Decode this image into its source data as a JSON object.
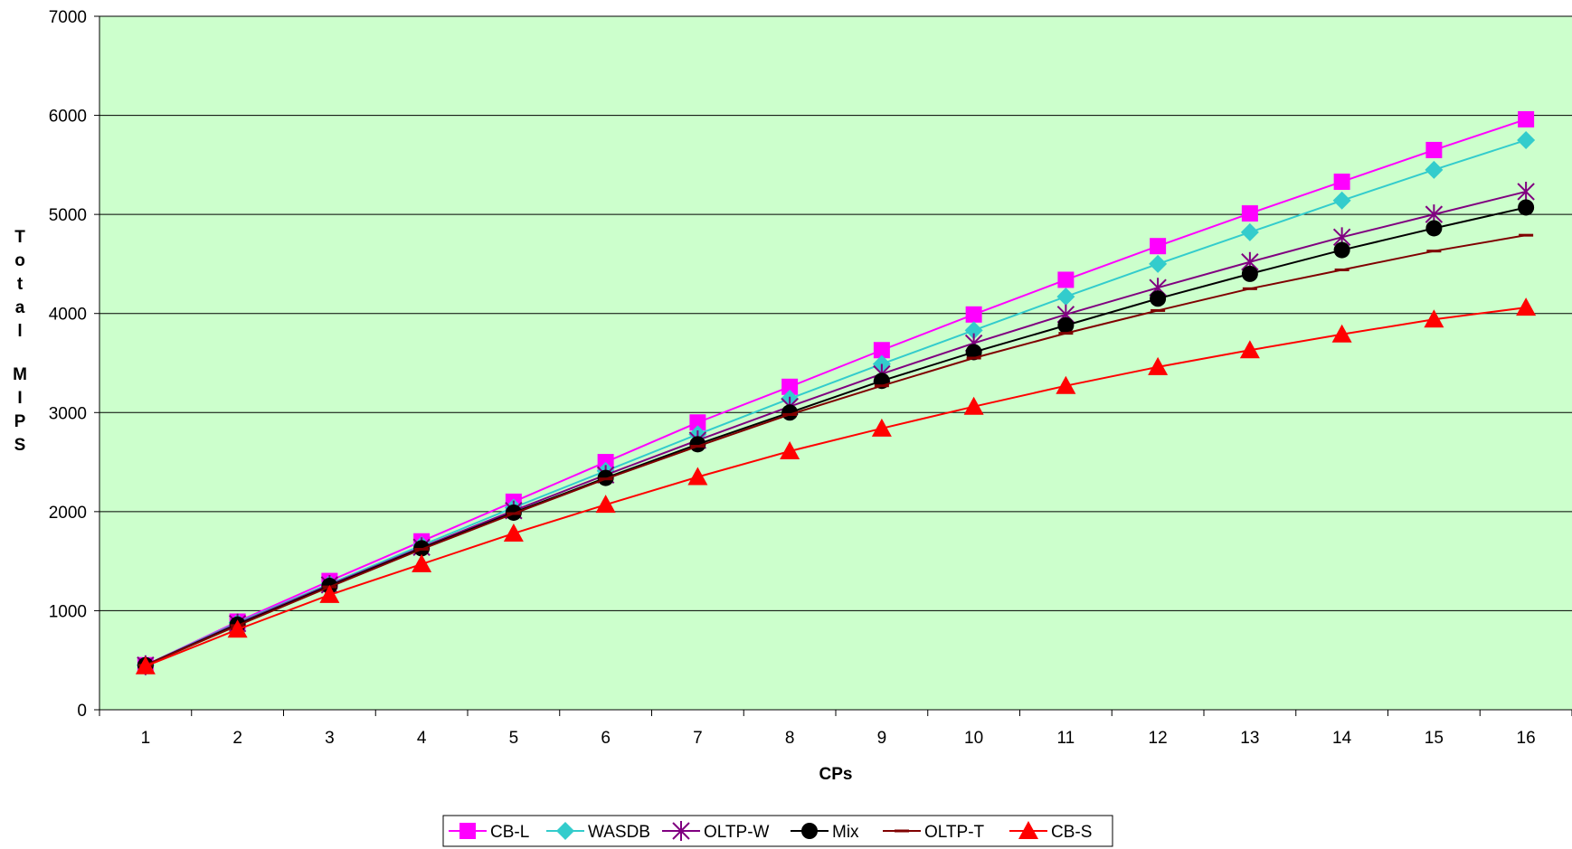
{
  "chart_data": {
    "type": "line",
    "title": "",
    "xlabel": "CPs",
    "ylabel": "Total MIPS",
    "ylim": [
      0,
      7000
    ],
    "yticks": [
      0,
      1000,
      2000,
      3000,
      4000,
      5000,
      6000,
      7000
    ],
    "x": [
      1,
      2,
      3,
      4,
      5,
      6,
      7,
      8,
      9,
      10,
      11,
      12,
      13,
      14,
      15,
      16
    ],
    "grid": "horizontal",
    "legend_position": "bottom",
    "plot_background": "#ccffcc",
    "series": [
      {
        "name": "CB-L",
        "color": "#ff00ff",
        "marker": "square",
        "values": [
          450,
          890,
          1300,
          1700,
          2100,
          2500,
          2900,
          3260,
          3630,
          3990,
          4340,
          4680,
          5010,
          5330,
          5650,
          5960
        ]
      },
      {
        "name": "WASDB",
        "color": "#33cccc",
        "marker": "diamond",
        "values": [
          450,
          880,
          1270,
          1660,
          2040,
          2410,
          2780,
          3140,
          3490,
          3830,
          4170,
          4500,
          4820,
          5140,
          5450,
          5750
        ]
      },
      {
        "name": "OLTP-W",
        "color": "#800080",
        "marker": "star",
        "values": [
          450,
          870,
          1260,
          1640,
          2010,
          2370,
          2720,
          3060,
          3390,
          3700,
          3990,
          4260,
          4520,
          4770,
          5000,
          5230
        ]
      },
      {
        "name": "Mix",
        "color": "#000000",
        "marker": "circle",
        "values": [
          450,
          860,
          1250,
          1630,
          1990,
          2340,
          2680,
          3000,
          3320,
          3610,
          3880,
          4150,
          4400,
          4640,
          4860,
          5070
        ]
      },
      {
        "name": "OLTP-T",
        "color": "#800000",
        "marker": "dash",
        "values": [
          450,
          850,
          1240,
          1620,
          1980,
          2330,
          2660,
          2980,
          3270,
          3550,
          3800,
          4030,
          4250,
          4440,
          4630,
          4790
        ]
      },
      {
        "name": "CB-S",
        "color": "#ff0000",
        "marker": "triangle",
        "values": [
          440,
          810,
          1160,
          1470,
          1780,
          2070,
          2350,
          2610,
          2840,
          3060,
          3270,
          3460,
          3630,
          3790,
          3940,
          4060
        ]
      }
    ]
  }
}
